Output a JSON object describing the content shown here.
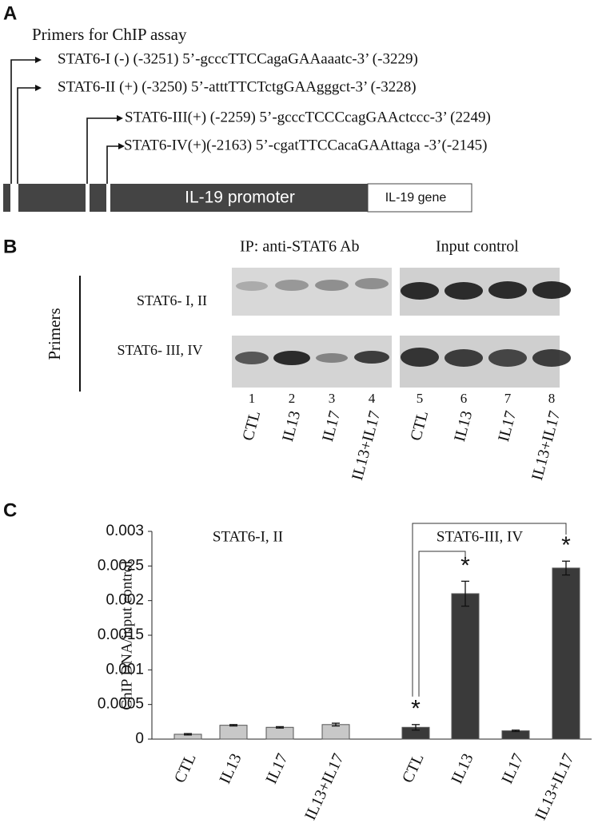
{
  "panel_a": {
    "label": "A",
    "title": "Primers for ChIP assay",
    "primers": [
      "STAT6-I (-) (-3251) 5’-gcccTTCCagaGAAaaatc-3’ (-3229)",
      "STAT6-II (+) (-3250) 5’-atttTTCTctgGAAgggct-3’ (-3228)",
      "STAT6-III(+) (-2259) 5’-gcccTCCCcagGAActccc-3’ (2249)",
      "STAT6-IV(+)(-2163) 5’-cgatTTCCacaGAAttaga -3’(-2145)"
    ],
    "promoter": "IL-19 promoter",
    "gene": "IL-19 gene"
  },
  "panel_b": {
    "label": "B",
    "ip_header": "IP: anti-STAT6 Ab",
    "input_header": "Input control",
    "axis_label": "Primers",
    "rows": [
      "STAT6- I, II",
      "STAT6- III, IV"
    ],
    "lanes": [
      "1",
      "2",
      "3",
      "4",
      "5",
      "6",
      "7",
      "8"
    ],
    "lane_labels": [
      "CTL",
      "IL13",
      "IL17",
      "IL13+IL17",
      "CTL",
      "IL13",
      "IL17",
      "IL13+IL17"
    ]
  },
  "chart_data": {
    "type": "bar",
    "panel_label": "C",
    "y_label": "ChIP DNA/input control",
    "categories": [
      "CTL",
      "IL13",
      "IL17",
      "IL13+IL17"
    ],
    "series": [
      {
        "name": "STAT6-I, II",
        "color": "#c8c8c8",
        "values": [
          7e-05,
          0.0002,
          0.00017,
          0.00021
        ],
        "errors": [
          1e-05,
          1e-05,
          1e-05,
          2e-05
        ]
      },
      {
        "name": "STAT6-III, IV",
        "color": "#3a3a3a",
        "values": [
          0.00017,
          0.0021,
          0.00012,
          0.00247
        ],
        "errors": [
          4e-05,
          0.00018,
          1e-05,
          0.0001
        ],
        "starred": [
          0,
          1,
          3
        ]
      }
    ],
    "significance_marker": "*",
    "ylim": [
      0,
      0.003
    ],
    "yticks": [
      0,
      0.0005,
      0.001,
      0.0015,
      0.002,
      0.0025,
      0.003
    ]
  }
}
